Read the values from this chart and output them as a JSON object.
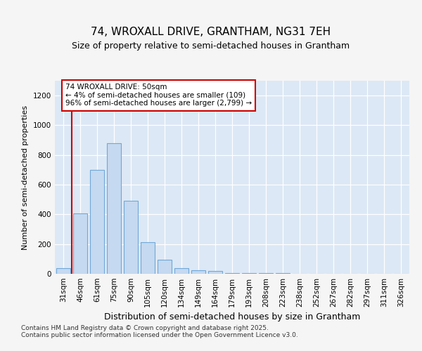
{
  "title_line1": "74, WROXALL DRIVE, GRANTHAM, NG31 7EH",
  "title_line2": "Size of property relative to semi-detached houses in Grantham",
  "xlabel": "Distribution of semi-detached houses by size in Grantham",
  "ylabel": "Number of semi-detached properties",
  "categories": [
    "31sqm",
    "46sqm",
    "61sqm",
    "75sqm",
    "90sqm",
    "105sqm",
    "120sqm",
    "134sqm",
    "149sqm",
    "164sqm",
    "179sqm",
    "193sqm",
    "208sqm",
    "223sqm",
    "238sqm",
    "252sqm",
    "267sqm",
    "282sqm",
    "297sqm",
    "311sqm",
    "326sqm"
  ],
  "values": [
    40,
    405,
    700,
    880,
    490,
    215,
    95,
    40,
    25,
    20,
    5,
    5,
    5,
    3,
    1,
    1,
    1,
    0,
    0,
    0,
    1
  ],
  "bar_color": "#c5d9f0",
  "bar_edgecolor": "#6fa8d8",
  "annotation_line1": "74 WROXALL DRIVE: 50sqm",
  "annotation_line2": "← 4% of semi-detached houses are smaller (109)",
  "annotation_line3": "96% of semi-detached houses are larger (2,799) →",
  "annotation_box_edgecolor": "#cc0000",
  "vline_color": "#cc0000",
  "vline_x": 1.0,
  "ylim": [
    0,
    1300
  ],
  "yticks": [
    0,
    200,
    400,
    600,
    800,
    1000,
    1200
  ],
  "background_color": "#f5f5f5",
  "plot_background": "#dce8f5",
  "footer": "Contains HM Land Registry data © Crown copyright and database right 2025.\nContains public sector information licensed under the Open Government Licence v3.0.",
  "title_fontsize": 11,
  "subtitle_fontsize": 9,
  "tick_fontsize": 7.5,
  "ylabel_fontsize": 8,
  "xlabel_fontsize": 9,
  "annotation_fontsize": 7.5,
  "footer_fontsize": 6.5
}
